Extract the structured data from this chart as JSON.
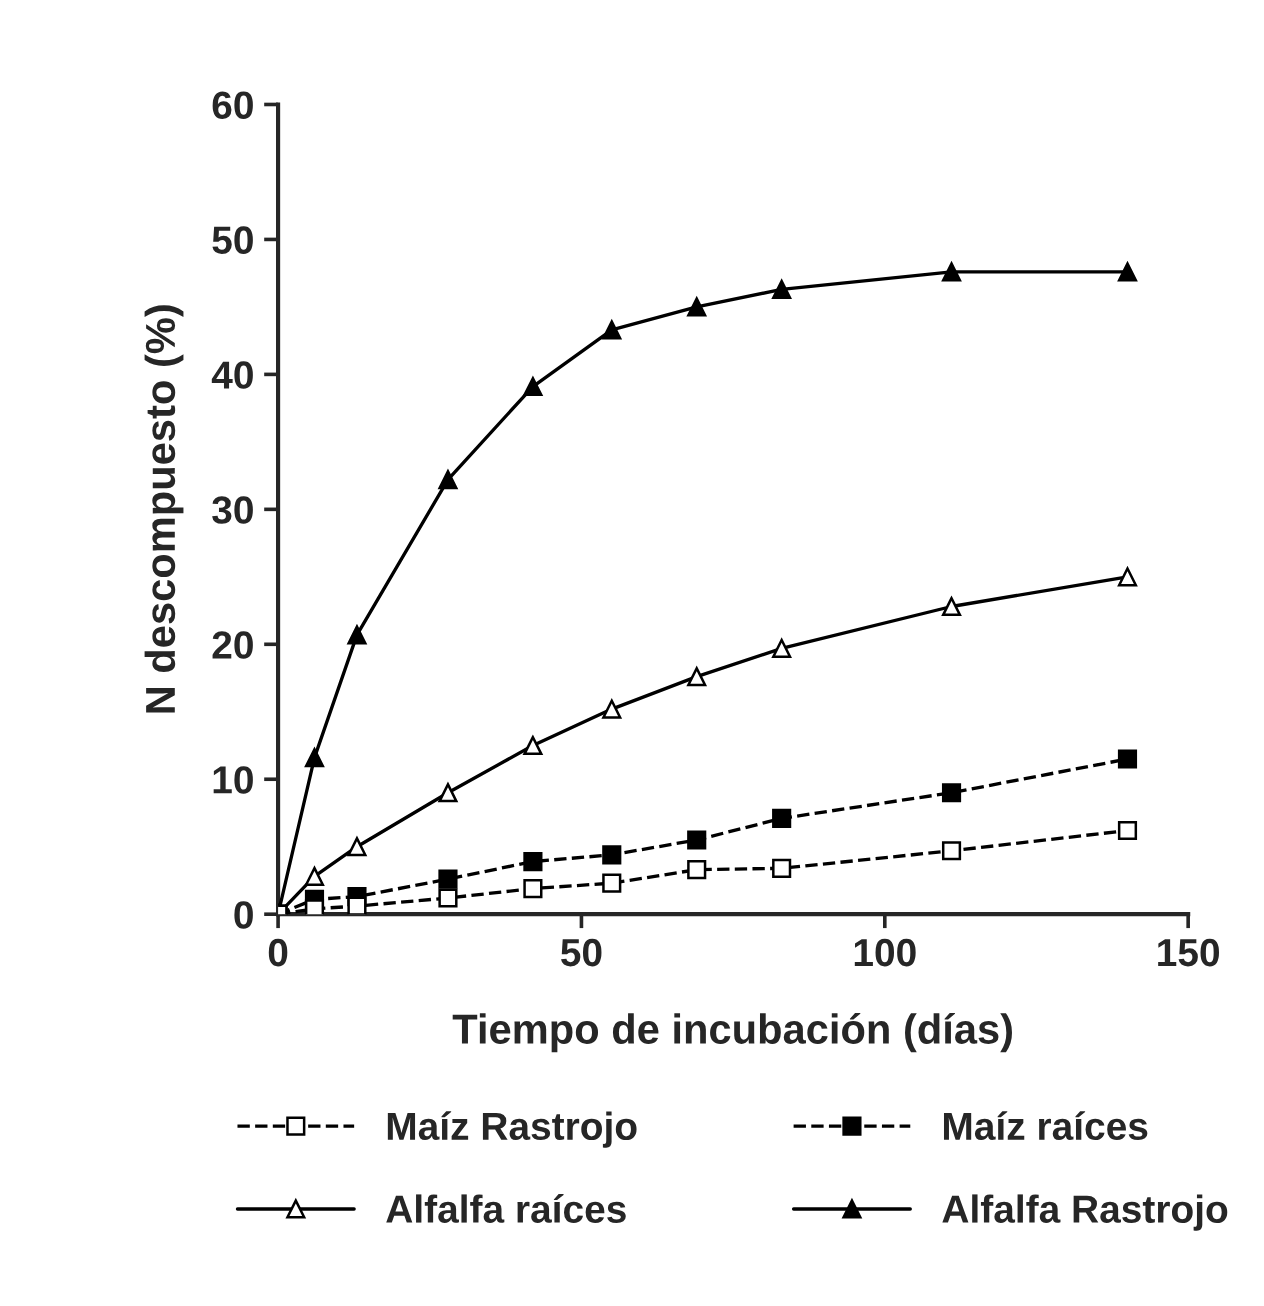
{
  "chart_data": {
    "type": "line",
    "xlabel": "Tiempo de incubación (días)",
    "ylabel": "N descompuesto (%)",
    "x": [
      0,
      6,
      13,
      28,
      42,
      55,
      69,
      83,
      111,
      140
    ],
    "series": [
      {
        "name": "Maíz Rastrojo",
        "color": "#ffffff",
        "marker": "square",
        "line_style": "dashed",
        "values": [
          0,
          0.4,
          0.6,
          1.2,
          1.9,
          2.3,
          3.3,
          3.4,
          4.7,
          6.2
        ]
      },
      {
        "name": "Maíz raíces",
        "color": "#000000",
        "marker": "square",
        "line_style": "dashed",
        "values": [
          0,
          1.1,
          1.3,
          2.6,
          3.9,
          4.4,
          5.5,
          7.1,
          9,
          11.5
        ]
      },
      {
        "name": "Alfalfa raíces",
        "color": "#ffffff",
        "marker": "triangle",
        "line_style": "solid",
        "values": [
          0,
          2.8,
          5,
          9,
          12.5,
          15.2,
          17.6,
          19.7,
          22.8,
          25
        ]
      },
      {
        "name": "Alfalfa Rastrojo",
        "color": "#000000",
        "marker": "triangle",
        "line_style": "solid",
        "values": [
          0,
          11.6,
          20.7,
          32.2,
          39.1,
          43.3,
          45,
          46.3,
          47.6,
          47.6
        ]
      }
    ],
    "xlim": [
      0,
      150
    ],
    "xticks": [
      0,
      50,
      100,
      150
    ],
    "ylim": [
      0,
      60
    ],
    "yticks": [
      0,
      10,
      20,
      30,
      40,
      50,
      60
    ],
    "grid": false,
    "legend": "bottom"
  }
}
